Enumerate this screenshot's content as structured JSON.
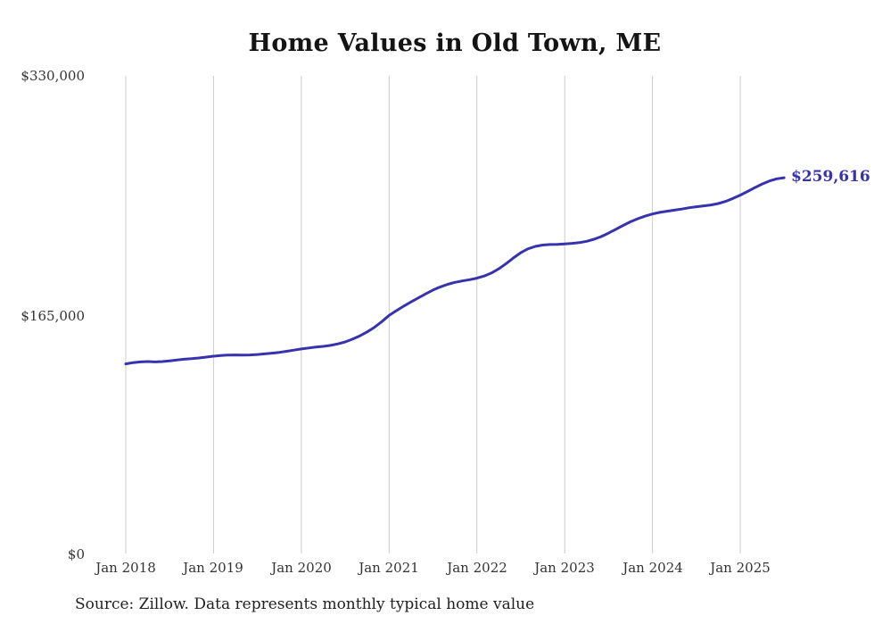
{
  "title": "Home Values in Old Town, ME",
  "source_note": "Source: Zillow. Data represents monthly typical home value",
  "end_label": "$259,616",
  "colors": {
    "line": "#3733ae",
    "end_label": "#3733ae",
    "grid": "#cccccc",
    "tick_text": "#333333",
    "background": "#ffffff"
  },
  "chart_data": {
    "type": "line",
    "title": "Home Values in Old Town, ME",
    "x_tick_labels": [
      "Jan 2018",
      "Jan 2019",
      "Jan 2020",
      "Jan 2021",
      "Jan 2022",
      "Jan 2023",
      "Jan 2024",
      "Jan 2025"
    ],
    "y_tick_labels": [
      "$0",
      "$165,000",
      "$330,000"
    ],
    "y_tick_values": [
      0,
      165000,
      330000
    ],
    "ylim": [
      0,
      330000
    ],
    "x_start_month": "2018-01",
    "x_end_month": "2025-07",
    "x_interval": "month",
    "grid": "vertical-only",
    "legend": "none",
    "final_value": 259616,
    "series": [
      {
        "name": "Typical home value",
        "monthly_values": [
          131000,
          131900,
          132400,
          132600,
          132400,
          132600,
          133100,
          133700,
          134200,
          134600,
          135100,
          135700,
          136300,
          136800,
          137100,
          137200,
          137100,
          137200,
          137500,
          137900,
          138400,
          139000,
          139700,
          140500,
          141300,
          142000,
          142600,
          143100,
          143800,
          144800,
          146200,
          148100,
          150400,
          153100,
          156300,
          160200,
          164500,
          167800,
          170900,
          173800,
          176600,
          179400,
          182000,
          184200,
          186000,
          187300,
          188300,
          189200,
          190200,
          191700,
          193800,
          196700,
          200300,
          204200,
          207800,
          210500,
          212200,
          213100,
          213500,
          213600,
          213900,
          214300,
          214800,
          215700,
          217100,
          219000,
          221400,
          224000,
          226700,
          229200,
          231300,
          233100,
          234600,
          235700,
          236500,
          237200,
          238000,
          238900,
          239600,
          240200,
          240800,
          241800,
          243300,
          245300,
          247600,
          250100,
          252800,
          255300,
          257400,
          258900,
          259616
        ]
      }
    ]
  }
}
